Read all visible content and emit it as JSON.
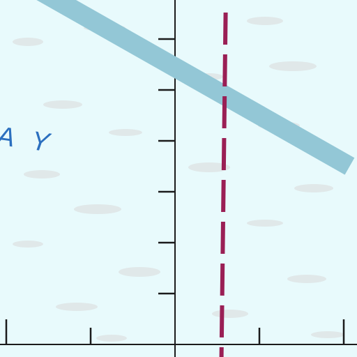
{
  "chart_data": {
    "type": "line",
    "title": "",
    "xlabel": "",
    "ylabel": "",
    "grid": false,
    "xlim": [
      -2,
      2
    ],
    "ylim": [
      0,
      7
    ],
    "x_ticks": [
      -2,
      -1,
      1,
      2
    ],
    "y_ticks": [
      1,
      2,
      3,
      4,
      5,
      6
    ],
    "series": [
      {
        "name": "AY",
        "label_text": "A Y",
        "color": "#93c7d6",
        "x": [
          -2.07,
          2.07
        ],
        "y": [
          7.39,
          3.5
        ]
      }
    ],
    "reference_lines": [
      {
        "name": "vertical-dashed",
        "orientation": "vertical",
        "x": 0.6,
        "color": "#9a1f55",
        "style": "dashed"
      }
    ]
  }
}
